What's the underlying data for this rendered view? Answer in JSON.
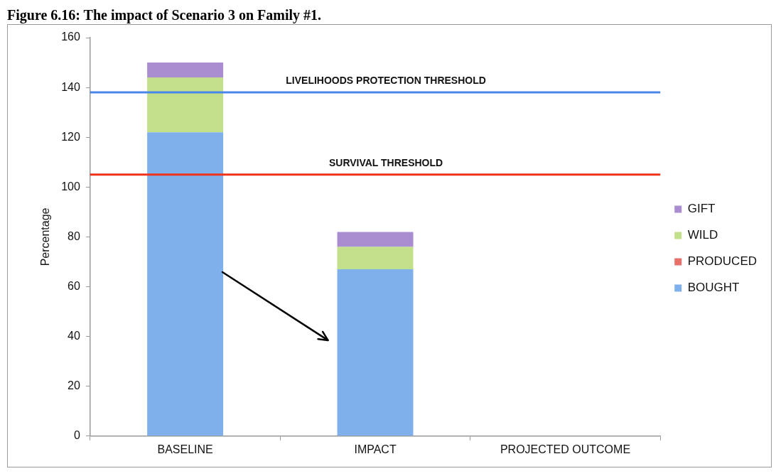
{
  "chart_data": {
    "type": "bar",
    "title": "Figure 6.16: The impact of Scenario 3 on Family #1.",
    "ylabel": "Percentage",
    "categories": [
      "BASELINE",
      "IMPACT",
      "PROJECTED OUTCOME"
    ],
    "stacked": true,
    "series": [
      {
        "name": "BOUGHT",
        "color": "#80b0ec",
        "values": [
          122,
          67,
          null
        ]
      },
      {
        "name": "PRODUCED",
        "color": "#e8706a",
        "values": [
          0,
          0,
          null
        ]
      },
      {
        "name": "WILD",
        "color": "#c2e08a",
        "values": [
          22,
          9,
          null
        ]
      },
      {
        "name": "GIFT",
        "color": "#a98dd0",
        "values": [
          6,
          6,
          null
        ]
      }
    ],
    "ylim": [
      0,
      160
    ],
    "yticks": [
      0,
      20,
      40,
      60,
      80,
      100,
      120,
      140,
      160
    ],
    "grid": false,
    "legend": "right",
    "ref_lines": [
      {
        "axis": "y",
        "value": 138,
        "label": "LIVELIHOODS PROTECTION THRESHOLD",
        "color": "#4a86e8"
      },
      {
        "axis": "y",
        "value": 105,
        "label": "SURVIVAL THRESHOLD",
        "color": "#ee3318"
      }
    ]
  }
}
